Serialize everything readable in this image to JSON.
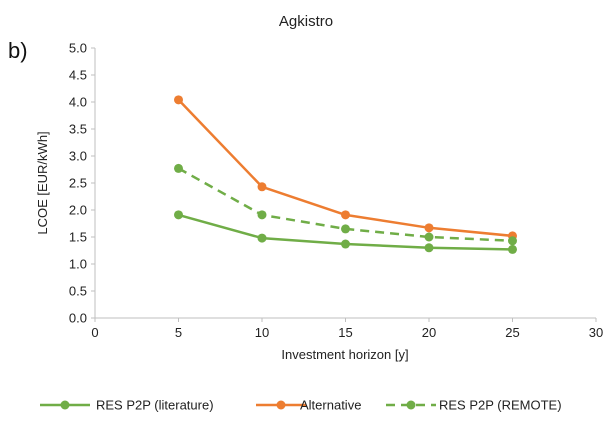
{
  "chart_data": {
    "type": "line",
    "panel_label": "b)",
    "title": "Agkistro",
    "xlabel": "Investment  horizon [y]",
    "ylabel": "LCOE [EUR/kWh]",
    "xlim": [
      0,
      30
    ],
    "ylim": [
      0,
      5
    ],
    "x_ticks": [
      "0",
      "5",
      "10",
      "15",
      "20",
      "25",
      "30"
    ],
    "y_ticks": [
      "0.0",
      "0.5",
      "1.0",
      "1.5",
      "2.0",
      "2.5",
      "3.0",
      "3.5",
      "4.0",
      "4.5",
      "5.0"
    ],
    "grid": false,
    "legend_position": "bottom",
    "x": [
      5,
      10,
      15,
      20,
      25
    ],
    "series": [
      {
        "name": "RES P2P (literature)",
        "values": [
          1.91,
          1.48,
          1.37,
          1.3,
          1.27
        ],
        "color": "#70ad47",
        "dash": "solid"
      },
      {
        "name": "Alternative",
        "values": [
          4.04,
          2.43,
          1.91,
          1.67,
          1.52
        ],
        "color": "#ed7d31",
        "dash": "solid"
      },
      {
        "name": "RES P2P (REMOTE)",
        "values": [
          2.77,
          1.91,
          1.65,
          1.5,
          1.43
        ],
        "color": "#70ad47",
        "dash": "dashed"
      }
    ]
  }
}
